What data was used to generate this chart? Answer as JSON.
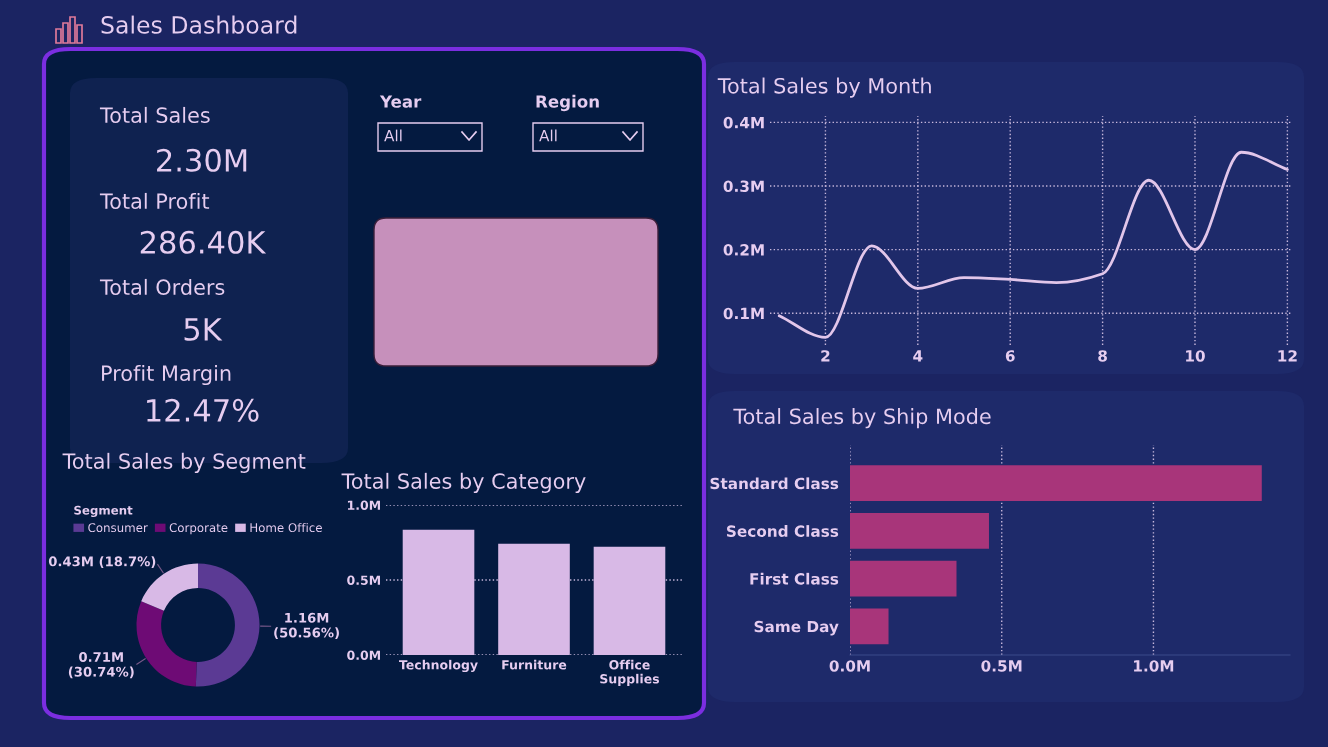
{
  "chart_data": [
    {
      "type": "other",
      "title": "Sales Dashboard",
      "annotations": [
        "Total Sales",
        "2.30M",
        "Total Profit",
        "286.40K",
        "Total Orders",
        "5K",
        "Profit Margin",
        "12.47%",
        "Year",
        "All",
        "Region",
        "All"
      ]
    },
    {
      "type": "line",
      "title": "Total Sales by Month",
      "x": [
        1,
        2,
        3,
        4,
        5,
        6,
        7,
        8,
        9,
        10,
        11,
        12
      ],
      "series": [
        {
          "color": "#e2c6ea",
          "values": [
            0.096,
            0.062,
            0.206,
            0.139,
            0.156,
            0.153,
            0.148,
            0.162,
            0.309,
            0.2,
            0.353,
            0.326
          ]
        }
      ],
      "xlim": [
        0.8,
        12.1
      ],
      "xticks": [
        2,
        4,
        6,
        8,
        10,
        12
      ],
      "ylim": [
        0.05,
        0.41
      ],
      "yticks": [
        {
          "value": 0.1,
          "label": "0.1M"
        },
        {
          "value": 0.2,
          "label": "0.2M"
        },
        {
          "value": 0.3,
          "label": "0.3M"
        },
        {
          "value": 0.4,
          "label": "0.4M"
        }
      ],
      "grid": true,
      "line_style": "solid"
    },
    {
      "type": "donut",
      "title": "Total Sales by Segment",
      "legend_title": "Segment",
      "categories": [
        "Consumer",
        "Corporate",
        "Home Office"
      ],
      "values": [
        50.56,
        30.74,
        18.7
      ],
      "colors": [
        "#5b3a94",
        "#6e0b75",
        "#d8b9e6"
      ],
      "legend": "top",
      "value_labels": [
        "1.16M\n(50.56%)",
        "0.71M\n(30.74%)",
        "0.43M (18.7%)"
      ]
    },
    {
      "type": "bar",
      "title": "Total Sales by Category",
      "categories": [
        "Technology",
        "Furniture",
        "Office\nSupplies"
      ],
      "values": [
        0.835,
        0.741,
        0.721
      ],
      "color": "#d8b9e6",
      "ylim": [
        0,
        1.0
      ],
      "yticks": [
        {
          "value": 0,
          "label": "0.0M"
        },
        {
          "value": 0.5,
          "label": "0.5M"
        },
        {
          "value": 1.0,
          "label": "1.0M"
        }
      ],
      "grid": "y"
    },
    {
      "type": "bar",
      "orientation": "horizontal",
      "title": "Total Sales by Ship Mode",
      "categories": [
        "Standard Class",
        "Second Class",
        "First Class",
        "Same Day"
      ],
      "values": [
        1.357,
        0.458,
        0.351,
        0.127
      ],
      "color": "#a8357a",
      "xlim": [
        0,
        1.45
      ],
      "xticks": [
        {
          "value": 0,
          "label": "0.0M"
        },
        {
          "value": 0.5,
          "label": "0.5M"
        },
        {
          "value": 1.0,
          "label": "1.0M"
        }
      ],
      "grid": "x"
    }
  ]
}
